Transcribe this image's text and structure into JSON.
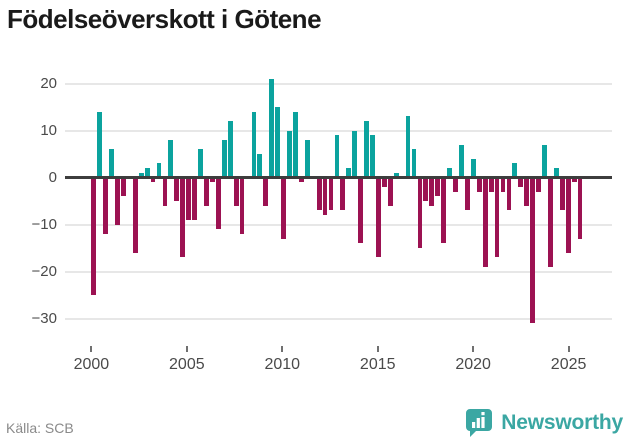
{
  "title": "Födelseöverskott i Götene",
  "source": {
    "label": "Källa: SCB"
  },
  "branding": {
    "name": "Newsworthy",
    "color": "#3BA7A3"
  },
  "chart_data": {
    "type": "bar",
    "title": "Födelseöverskott i Götene",
    "x_axis": {
      "tick_years": [
        2000,
        2005,
        2010,
        2015,
        2020,
        2025
      ],
      "tick_labels": [
        "2000",
        "2005",
        "2010",
        "2015",
        "2020",
        "2025"
      ]
    },
    "y_axis": {
      "ticks": [
        20,
        10,
        0,
        -10,
        -20,
        -30
      ],
      "tick_labels": [
        "20",
        "10",
        "0",
        "−10",
        "−20",
        "−30"
      ],
      "ylim": [
        -33,
        23
      ]
    },
    "grid": true,
    "legend": false,
    "positive_color": "#0BA39E",
    "negative_color": "#9C1252",
    "values": [
      -25,
      14,
      -12,
      6,
      -10,
      -4,
      0,
      -16,
      1,
      2,
      -1,
      3,
      -6,
      8,
      -5,
      -17,
      -9,
      -9,
      6,
      -6,
      -1,
      -11,
      8,
      12,
      -6,
      -12,
      0,
      14,
      5,
      -6,
      21,
      15,
      -13,
      10,
      14,
      -1,
      8,
      0,
      -7,
      -8,
      -7,
      9,
      -7,
      2,
      10,
      -14,
      12,
      9,
      -17,
      -2,
      -6,
      1,
      0,
      13,
      6,
      -15,
      -5,
      -6,
      -4,
      -14,
      2,
      -3,
      7,
      -7,
      4,
      -3,
      -19,
      -3,
      -17,
      -3,
      -7,
      3,
      -2,
      -6,
      -31,
      -3,
      7,
      -19,
      2,
      -7,
      -16,
      -1,
      -13
    ]
  }
}
